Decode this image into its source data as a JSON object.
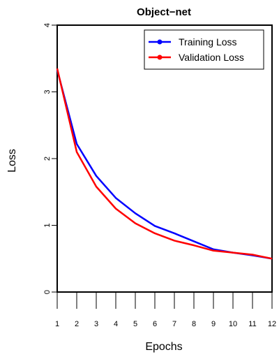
{
  "chart_data": {
    "type": "line",
    "title": "Object−net",
    "xlabel": "Epochs",
    "ylabel": "Loss",
    "x": [
      1,
      2,
      3,
      4,
      5,
      6,
      7,
      8,
      9,
      10,
      11,
      12
    ],
    "xlim": [
      1,
      12
    ],
    "ylim": [
      0,
      4
    ],
    "yticks": [
      0,
      1,
      2,
      3,
      4
    ],
    "grid": false,
    "legend_position": "top-right",
    "series": [
      {
        "name": "Training Loss",
        "color": "#0000ff",
        "values": [
          3.33,
          2.22,
          1.74,
          1.41,
          1.18,
          0.99,
          0.88,
          0.76,
          0.64,
          0.59,
          0.55,
          0.5
        ]
      },
      {
        "name": "Validation Loss",
        "color": "#ff0000",
        "values": [
          3.35,
          2.1,
          1.58,
          1.25,
          1.03,
          0.88,
          0.77,
          0.7,
          0.62,
          0.59,
          0.56,
          0.5
        ]
      }
    ]
  }
}
